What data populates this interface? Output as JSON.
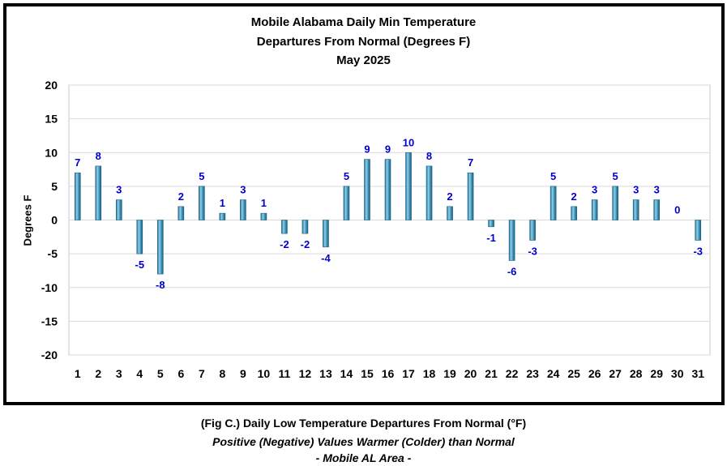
{
  "chart_data": {
    "type": "bar",
    "title_lines": [
      "Mobile Alabama Daily Min Temperature",
      "Departures From Normal (Degrees F)",
      "May 2025"
    ],
    "xlabel": "",
    "ylabel": "Degrees F",
    "ylim": [
      -20,
      20
    ],
    "yticks": [
      20,
      15,
      10,
      5,
      0,
      -5,
      -10,
      -15,
      -20
    ],
    "grid": true,
    "categories": [
      "1",
      "2",
      "3",
      "4",
      "5",
      "6",
      "7",
      "8",
      "9",
      "10",
      "11",
      "12",
      "13",
      "14",
      "15",
      "16",
      "17",
      "18",
      "19",
      "20",
      "21",
      "22",
      "23",
      "24",
      "25",
      "26",
      "27",
      "28",
      "29",
      "30",
      "31"
    ],
    "values": [
      7,
      8,
      3,
      -5,
      -8,
      2,
      5,
      1,
      3,
      1,
      -2,
      -2,
      -4,
      5,
      9,
      9,
      10,
      8,
      2,
      7,
      -1,
      -6,
      -3,
      5,
      2,
      3,
      5,
      3,
      3,
      0,
      -3
    ],
    "bar_color": "#3a8fb5",
    "label_color": "#0000cc"
  },
  "caption": {
    "line1": "(Fig C.) Daily Low Temperature Departures From Normal (°F)",
    "line2": "Positive (Negative) Values Warmer (Colder) than Normal",
    "line3": "- Mobile AL Area -"
  }
}
